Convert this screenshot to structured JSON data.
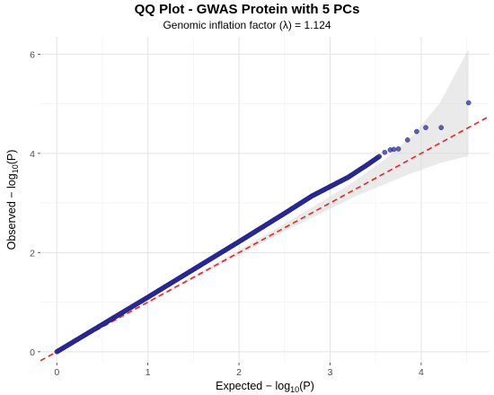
{
  "chart_data": {
    "type": "scatter",
    "title": "QQ Plot - GWAS Protein with 5 PCs",
    "subtitle": "Genomic inflation factor (λ) = 1.124",
    "xlabel": {
      "main": "Expected − log",
      "sub": "10",
      "tail": "(P)"
    },
    "ylabel": {
      "main": "Observed − log",
      "sub": "10",
      "tail": "(P)"
    },
    "xlim": [
      -0.18,
      4.75
    ],
    "ylim": [
      -0.22,
      6.35
    ],
    "x_ticks": [
      0,
      1,
      2,
      3,
      4
    ],
    "x_tick_labels": [
      "0",
      "1",
      "2",
      "3",
      "4"
    ],
    "y_ticks": [
      0,
      2,
      4,
      6
    ],
    "y_tick_labels": [
      "0",
      "2",
      "4",
      "6"
    ],
    "grid": true,
    "reference_line": {
      "slope": 1,
      "intercept": 0,
      "color": "#ee2222",
      "style": "dashed"
    },
    "observed_curve": [
      [
        0,
        0
      ],
      [
        0.5,
        0.55
      ],
      [
        1.0,
        1.1
      ],
      [
        1.5,
        1.66
      ],
      [
        2.0,
        2.22
      ],
      [
        2.5,
        2.79
      ],
      [
        2.8,
        3.14
      ],
      [
        3.0,
        3.33
      ],
      [
        3.2,
        3.52
      ],
      [
        3.4,
        3.76
      ],
      [
        3.55,
        3.95
      ]
    ],
    "upper_points": [
      [
        3.6,
        4.02
      ],
      [
        3.66,
        4.07
      ],
      [
        3.7,
        4.08
      ],
      [
        3.75,
        4.09
      ],
      [
        3.85,
        4.27
      ],
      [
        3.95,
        4.44
      ],
      [
        4.05,
        4.52
      ],
      [
        4.22,
        4.52
      ],
      [
        4.52,
        5.02
      ]
    ],
    "confidence_band": {
      "x": [
        0,
        1.0,
        2.0,
        2.5,
        3.0,
        3.3,
        3.6,
        3.9,
        4.2,
        4.52
      ],
      "lower": [
        0,
        0.98,
        1.95,
        2.43,
        2.88,
        3.15,
        3.38,
        3.6,
        3.8,
        3.95
      ],
      "upper": [
        0,
        1.02,
        2.05,
        2.58,
        3.13,
        3.48,
        3.88,
        4.35,
        5.0,
        6.1
      ],
      "color": "#d9d9d9"
    },
    "point_color": "#2d2d9f",
    "point_edge_color": "#1a1a6e"
  }
}
